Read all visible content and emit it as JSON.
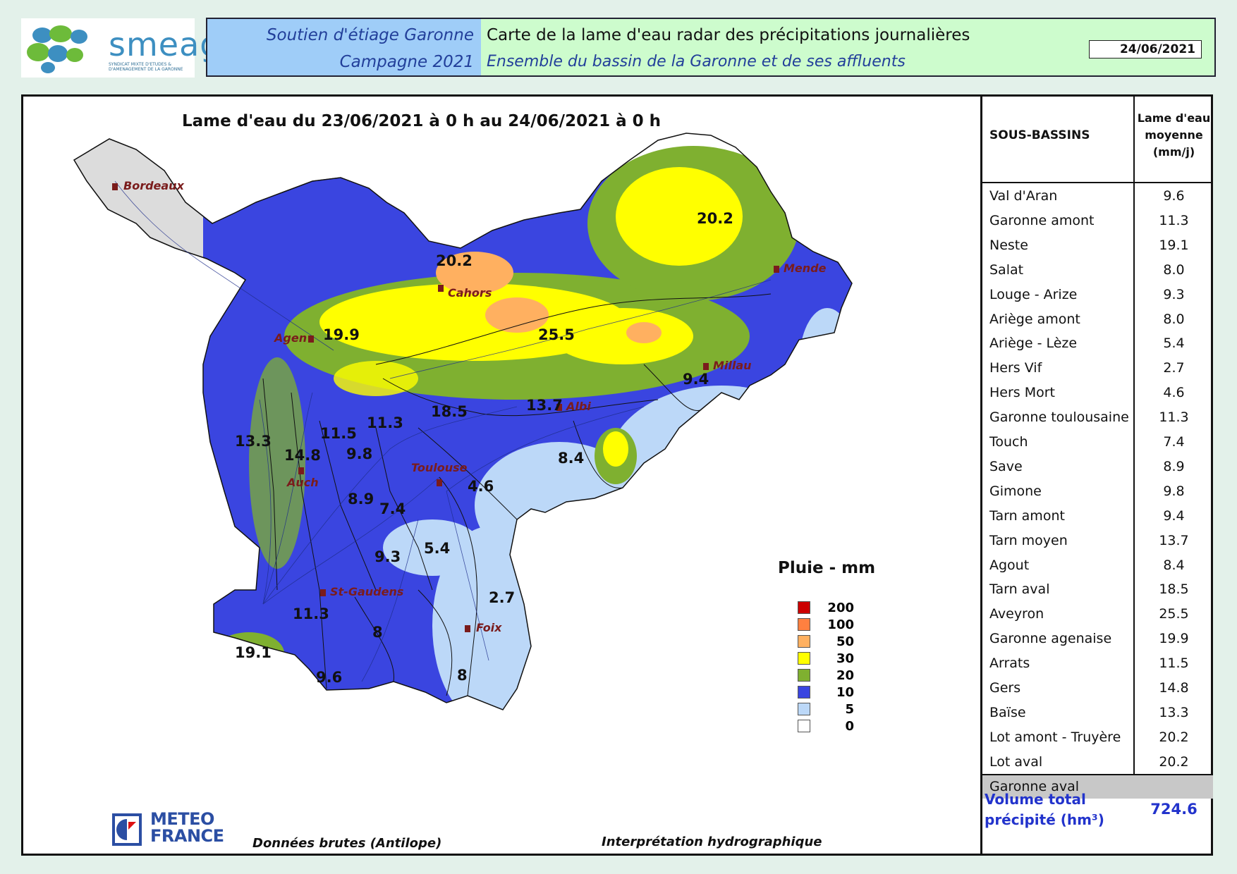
{
  "header": {
    "logo_text": "smeag",
    "logo_sub": "SYNDICAT MIXTE D'ETUDES & D'AMENAGEMENT DE LA GARONNE",
    "left_line1": "Soutien d'étiage Garonne",
    "left_line2": "Campagne 2021",
    "right_line1": "Carte de la lame d'eau radar des précipitations journalières",
    "right_line2": "Ensemble du bassin de la Garonne et de ses affluents",
    "date": "24/06/2021"
  },
  "map": {
    "title": "Lame d'eau du 23/06/2021 à 0 h au 24/06/2021 à 0 h",
    "cities": [
      "Bordeaux",
      "Agen",
      "Cahors",
      "Mende",
      "Millau",
      "Albi",
      "Toulouse",
      "Auch",
      "St-Gaudens",
      "Foix"
    ],
    "basin_values": [
      "20.2",
      "20.2",
      "19.9",
      "25.5",
      "9.4",
      "13.7",
      "18.5",
      "11.3",
      "11.5",
      "13.3",
      "14.8",
      "9.8",
      "8.4",
      "4.6",
      "8.9",
      "7.4",
      "5.4",
      "9.3",
      "2.7",
      "11.3",
      "8",
      "19.1",
      "9.6",
      "8"
    ]
  },
  "legend": {
    "title": "Pluie - mm",
    "items": [
      {
        "label": "200",
        "color": "#cc0000"
      },
      {
        "label": "100",
        "color": "#ff8040"
      },
      {
        "label": "50",
        "color": "#ffb060"
      },
      {
        "label": "30",
        "color": "#ffff00"
      },
      {
        "label": "20",
        "color": "#7fb030"
      },
      {
        "label": "10",
        "color": "#3a45e0"
      },
      {
        "label": "5",
        "color": "#bcd8f8"
      },
      {
        "label": "0",
        "color": "#ffffff"
      }
    ]
  },
  "footer": {
    "brand_line1": "METEO",
    "brand_line2": "FRANCE",
    "source": "Données brutes (Antilope)",
    "interpretation": "Interprétation hydrographique"
  },
  "table": {
    "col1": "SOUS-BASSINS",
    "col2_l1": "Lame d'eau",
    "col2_l2": "moyenne",
    "col2_l3": "(mm/j)",
    "rows": [
      {
        "name": "Val d'Aran",
        "value": "9.6"
      },
      {
        "name": "Garonne amont",
        "value": "11.3"
      },
      {
        "name": "Neste",
        "value": "19.1"
      },
      {
        "name": "Salat",
        "value": "8.0"
      },
      {
        "name": "Louge - Arize",
        "value": "9.3"
      },
      {
        "name": "Ariège amont",
        "value": "8.0"
      },
      {
        "name": "Ariège - Lèze",
        "value": "5.4"
      },
      {
        "name": "Hers Vif",
        "value": "2.7"
      },
      {
        "name": "Hers Mort",
        "value": "4.6"
      },
      {
        "name": "Garonne toulousaine",
        "value": "11.3"
      },
      {
        "name": "Touch",
        "value": "7.4"
      },
      {
        "name": "Save",
        "value": "8.9"
      },
      {
        "name": "Gimone",
        "value": "9.8"
      },
      {
        "name": "Tarn amont",
        "value": "9.4"
      },
      {
        "name": "Tarn moyen",
        "value": "13.7"
      },
      {
        "name": "Agout",
        "value": "8.4"
      },
      {
        "name": "Tarn aval",
        "value": "18.5"
      },
      {
        "name": "Aveyron",
        "value": "25.5"
      },
      {
        "name": "Garonne agenaise",
        "value": "19.9"
      },
      {
        "name": "Arrats",
        "value": "11.5"
      },
      {
        "name": "Gers",
        "value": "14.8"
      },
      {
        "name": "Baïse",
        "value": "13.3"
      },
      {
        "name": "Lot amont - Truyère",
        "value": "20.2"
      },
      {
        "name": "Lot aval",
        "value": "20.2"
      },
      {
        "name": "Garonne aval",
        "value": ""
      }
    ],
    "volume_l1": "Volume total",
    "volume_l2": "précipité (hm³)",
    "volume_value": "724.6"
  }
}
